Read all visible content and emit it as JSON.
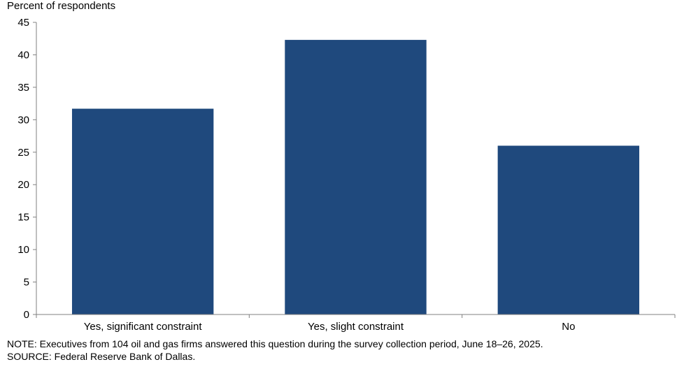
{
  "chart_data": {
    "type": "bar",
    "ylabel": "Percent of respondents",
    "categories": [
      "Yes, significant constraint",
      "Yes, slight constraint",
      "No"
    ],
    "values": [
      31.7,
      42.3,
      26.0
    ],
    "ylim": [
      0,
      45
    ],
    "yticks": [
      "0",
      "5",
      "10",
      "15",
      "20",
      "25",
      "30",
      "35",
      "40",
      "45"
    ],
    "bar_color": "#1f497d",
    "grid": false,
    "legend": "none"
  },
  "notes": {
    "note": "NOTE: Executives from 104 oil and gas firms answered this question during the survey collection period, June 18–26, 2025.",
    "source": "SOURCE: Federal Reserve Bank of Dallas."
  }
}
